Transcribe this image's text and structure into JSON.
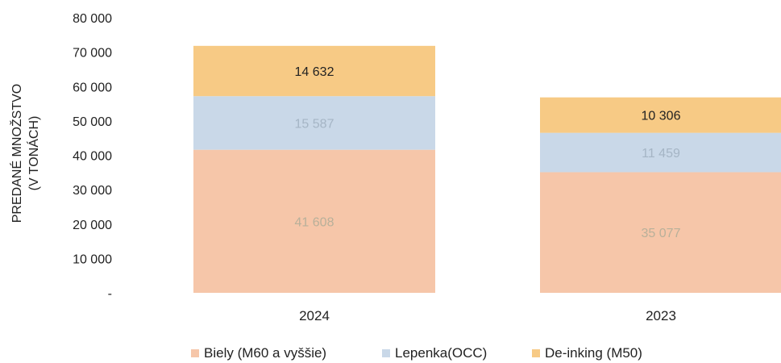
{
  "chart_data": {
    "type": "bar",
    "stacked": true,
    "categories": [
      "2024",
      "2023"
    ],
    "series": [
      {
        "name": "Biely (M60 a vyššie)",
        "values": [
          41608,
          35077
        ],
        "labels": [
          "41 608",
          "35 077"
        ],
        "color": "#f6c6a9",
        "label_color": "#b8b09a"
      },
      {
        "name": "Lepenka(OCC)",
        "values": [
          15587,
          11459
        ],
        "labels": [
          "15 587",
          "11 459"
        ],
        "color": "#c9d8e8",
        "label_color": "#a5b5c5"
      },
      {
        "name": "De-inking (M50)",
        "values": [
          14632,
          10306
        ],
        "labels": [
          "14 632",
          "10 306"
        ],
        "color": "#f7ca85",
        "label_color": "#222222"
      }
    ],
    "ylabel_lines": [
      "PREDANÉ MNOŽSTVO",
      "(V TONÁCH)"
    ],
    "ylim": [
      0,
      80000
    ],
    "yticks": [
      0,
      10000,
      20000,
      30000,
      40000,
      50000,
      60000,
      70000,
      80000
    ],
    "ytick_labels": [
      "-",
      "10 000",
      "20 000",
      "30 000",
      "40 000",
      "50 000",
      "60 000",
      "70 000",
      "80 000"
    ],
    "grid": false,
    "legend_position": "bottom"
  }
}
